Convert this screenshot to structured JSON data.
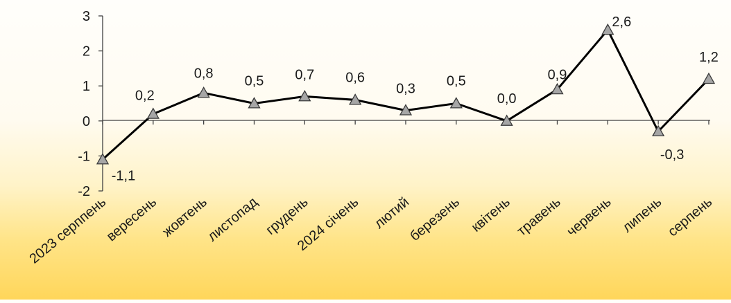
{
  "chart_data": {
    "type": "line",
    "title": "",
    "xlabel": "",
    "ylabel": "",
    "ylim": [
      -2,
      3
    ],
    "yticks": [
      "3",
      "2",
      "1",
      "0",
      "-1",
      "-2"
    ],
    "grid": false,
    "legend": "none",
    "categories": [
      "2023 серппень",
      "вересень",
      "жовтень",
      "листопад",
      "грудень",
      "2024 січень",
      "лютий",
      "березень",
      "квітень",
      "травень",
      "червень",
      "липень",
      "серпень"
    ],
    "values": [
      -1.1,
      0.2,
      0.8,
      0.5,
      0.7,
      0.6,
      0.3,
      0.5,
      0.0,
      0.9,
      2.6,
      -0.3,
      1.2
    ],
    "data_labels": [
      "-1,1",
      "0,2",
      "0,8",
      "0,5",
      "0,7",
      "0,6",
      "0,3",
      "0,5",
      "0,0",
      "0,9",
      "2,6",
      "-0,3",
      "1,2"
    ],
    "line_color": "#000000",
    "marker_color": "#a6a6a6",
    "marker": "triangle"
  }
}
